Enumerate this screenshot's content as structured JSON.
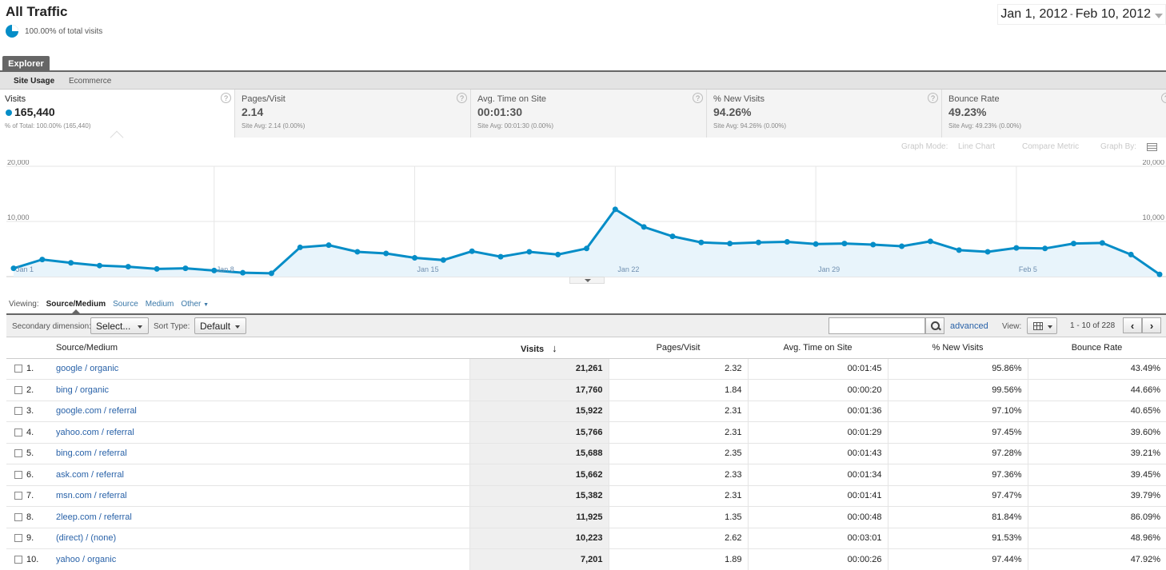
{
  "header": {
    "title": "All Traffic",
    "subtitle": "100.00% of total visits",
    "date_start": "Jan 1, 2012",
    "date_sep": "-",
    "date_end": "Feb 10, 2012"
  },
  "tabs": {
    "explorer": "Explorer",
    "sub": [
      "Site Usage",
      "Ecommerce"
    ]
  },
  "metrics": [
    {
      "label": "Visits",
      "value": "165,440",
      "sub": "% of Total: 100.00% (165,440)"
    },
    {
      "label": "Pages/Visit",
      "value": "2.14",
      "sub": "Site Avg: 2.14 (0.00%)"
    },
    {
      "label": "Avg. Time on Site",
      "value": "00:01:30",
      "sub": "Site Avg: 00:01:30 (0.00%)"
    },
    {
      "label": "% New Visits",
      "value": "94.26%",
      "sub": "Site Avg: 94.26% (0.00%)"
    },
    {
      "label": "Bounce Rate",
      "value": "49.23%",
      "sub": "Site Avg: 49.23% (0.00%)"
    }
  ],
  "graph_options": {
    "mode_label": "Graph Mode:",
    "mode_value": "Line Chart",
    "compare": "Compare Metric",
    "graph_by": "Graph By:"
  },
  "chart_data": {
    "type": "area",
    "series": [
      {
        "values": [
          1500,
          3100,
          2500,
          2000,
          1800,
          1400,
          1500,
          1100,
          700,
          600,
          5300,
          5700,
          4500,
          4200,
          3400,
          3000,
          4600,
          3600,
          4500,
          4000,
          5100,
          12200,
          9000,
          7300,
          6200,
          6000,
          6200,
          6300,
          5900,
          6000,
          5800,
          5500,
          6400,
          4800,
          4500,
          5200,
          5100,
          6000,
          6100,
          4000,
          400
        ]
      }
    ],
    "x_tick_labels": [
      "Jan 1",
      "Jan 8",
      "Jan 15",
      "Jan 22",
      "Jan 29",
      "Feb 5"
    ],
    "y_tick_labels": [
      "20,000",
      "10,000"
    ],
    "ylim": [
      0,
      20000
    ],
    "color": "#058dc7",
    "fill": "#e8f4fb"
  },
  "viewing": {
    "label": "Viewing:",
    "active": "Source/Medium",
    "links": [
      "Source",
      "Medium"
    ],
    "other": "Other"
  },
  "toolbar": {
    "secondary_label": "Secondary dimension:",
    "secondary_value": "Select...",
    "sort_label": "Sort Type:",
    "sort_value": "Default",
    "search_placeholder": "",
    "advanced": "advanced",
    "view_label": "View:",
    "pager": "1 - 10 of 228",
    "prev": "‹",
    "next": "›"
  },
  "table": {
    "headers": [
      "Source/Medium",
      "Visits",
      "Pages/Visit",
      "Avg. Time on Site",
      "% New Visits",
      "Bounce Rate"
    ],
    "sort_icon": "↓",
    "rows": [
      {
        "idx": "1.",
        "src": "google / organic",
        "visits": "21,261",
        "ppv": "2.32",
        "time": "00:01:45",
        "newv": "95.86%",
        "bounce": "43.49%"
      },
      {
        "idx": "2.",
        "src": "bing / organic",
        "visits": "17,760",
        "ppv": "1.84",
        "time": "00:00:20",
        "newv": "99.56%",
        "bounce": "44.66%"
      },
      {
        "idx": "3.",
        "src": "google.com / referral",
        "visits": "15,922",
        "ppv": "2.31",
        "time": "00:01:36",
        "newv": "97.10%",
        "bounce": "40.65%"
      },
      {
        "idx": "4.",
        "src": "yahoo.com / referral",
        "visits": "15,766",
        "ppv": "2.31",
        "time": "00:01:29",
        "newv": "97.45%",
        "bounce": "39.60%"
      },
      {
        "idx": "5.",
        "src": "bing.com / referral",
        "visits": "15,688",
        "ppv": "2.35",
        "time": "00:01:43",
        "newv": "97.28%",
        "bounce": "39.21%"
      },
      {
        "idx": "6.",
        "src": "ask.com / referral",
        "visits": "15,662",
        "ppv": "2.33",
        "time": "00:01:34",
        "newv": "97.36%",
        "bounce": "39.45%"
      },
      {
        "idx": "7.",
        "src": "msn.com / referral",
        "visits": "15,382",
        "ppv": "2.31",
        "time": "00:01:41",
        "newv": "97.47%",
        "bounce": "39.79%"
      },
      {
        "idx": "8.",
        "src": "2leep.com / referral",
        "visits": "11,925",
        "ppv": "1.35",
        "time": "00:00:48",
        "newv": "81.84%",
        "bounce": "86.09%"
      },
      {
        "idx": "9.",
        "src": "(direct) / (none)",
        "visits": "10,223",
        "ppv": "2.62",
        "time": "00:03:01",
        "newv": "91.53%",
        "bounce": "48.96%"
      },
      {
        "idx": "10.",
        "src": "yahoo / organic",
        "visits": "7,201",
        "ppv": "1.89",
        "time": "00:00:26",
        "newv": "97.44%",
        "bounce": "47.92%"
      }
    ]
  }
}
